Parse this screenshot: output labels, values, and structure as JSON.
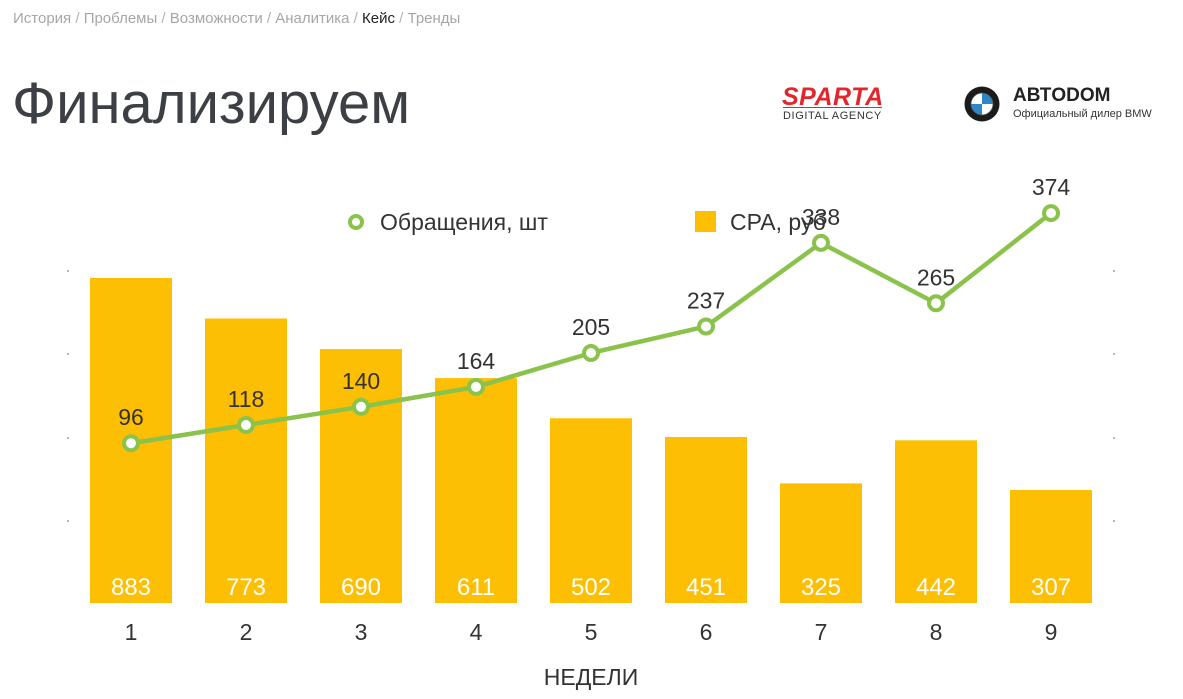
{
  "breadcrumb": {
    "items": [
      {
        "label": "История",
        "active": false
      },
      {
        "label": "Проблемы",
        "active": false
      },
      {
        "label": "Возможности",
        "active": false
      },
      {
        "label": "Аналитика",
        "active": false
      },
      {
        "label": "Кейс",
        "active": true
      },
      {
        "label": "Тренды",
        "active": false
      }
    ],
    "separator": "/"
  },
  "title": "Финализируем",
  "logos": {
    "sparta": {
      "word": "SPARTA",
      "sub": "DIGITAL AGENCY"
    },
    "avtodom": {
      "word": "АВТODOM",
      "sub": "Официальный дилер BMW"
    }
  },
  "chart_data": {
    "type": "bar",
    "categories": [
      "1",
      "2",
      "3",
      "4",
      "5",
      "6",
      "7",
      "8",
      "9"
    ],
    "xlabel": "НЕДЕЛИ",
    "ylabel": "",
    "grid": false,
    "legend_position": "top-center",
    "series": [
      {
        "name": "CPA, руб",
        "type": "bar",
        "values": [
          883,
          773,
          690,
          611,
          502,
          451,
          325,
          442,
          307
        ],
        "color": "#fdbf03"
      },
      {
        "name": "Обращения, шт",
        "type": "line",
        "values": [
          96,
          118,
          140,
          164,
          205,
          237,
          338,
          265,
          374
        ],
        "color": "#8ac24b"
      }
    ]
  }
}
